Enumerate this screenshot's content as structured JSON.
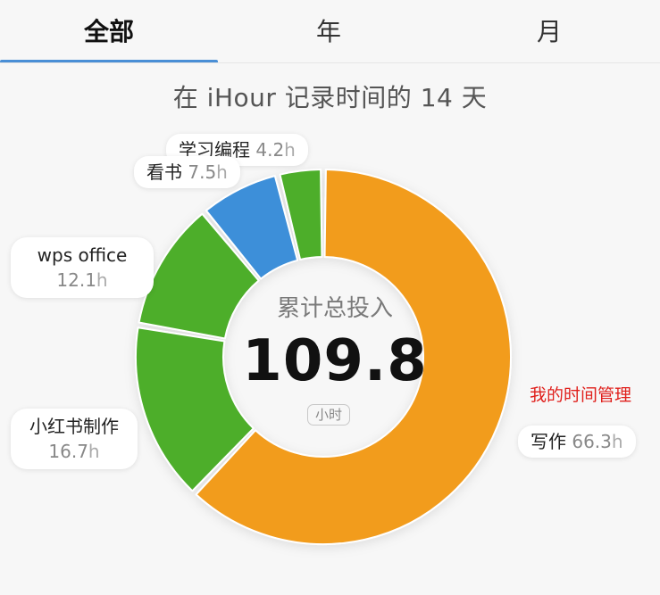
{
  "tabs": [
    {
      "label": "全部",
      "active": true
    },
    {
      "label": "年",
      "active": false
    },
    {
      "label": "月",
      "active": false
    }
  ],
  "headline": "在 iHour 记录时间的 14 天",
  "center": {
    "label": "累计总投入",
    "value": "109.8",
    "unit": "小时"
  },
  "annotation": "我的时间管理",
  "colors": {
    "orange": "#F29C1F",
    "green": "#4DAE2C",
    "blue": "#3D8FD9",
    "accent": "#4A8FD6",
    "annotation": "#E0201C"
  },
  "chart_data": {
    "type": "pie",
    "donut": true,
    "unit": "h",
    "series": [
      {
        "name": "写作",
        "value": 66.3,
        "display": "66.3",
        "color": "#F29C1F"
      },
      {
        "name": "小红书制作",
        "value": 16.7,
        "display": "16.7",
        "color": "#4DAE2C"
      },
      {
        "name": "wps office",
        "value": 12.1,
        "display": "12.1",
        "color": "#4DAE2C"
      },
      {
        "name": "看书",
        "value": 7.5,
        "display": "7.5",
        "color": "#3D8FD9"
      },
      {
        "name": "学习编程",
        "value": 4.2,
        "display": "4.2",
        "color": "#4DAE2C"
      }
    ],
    "total": 109.8
  }
}
